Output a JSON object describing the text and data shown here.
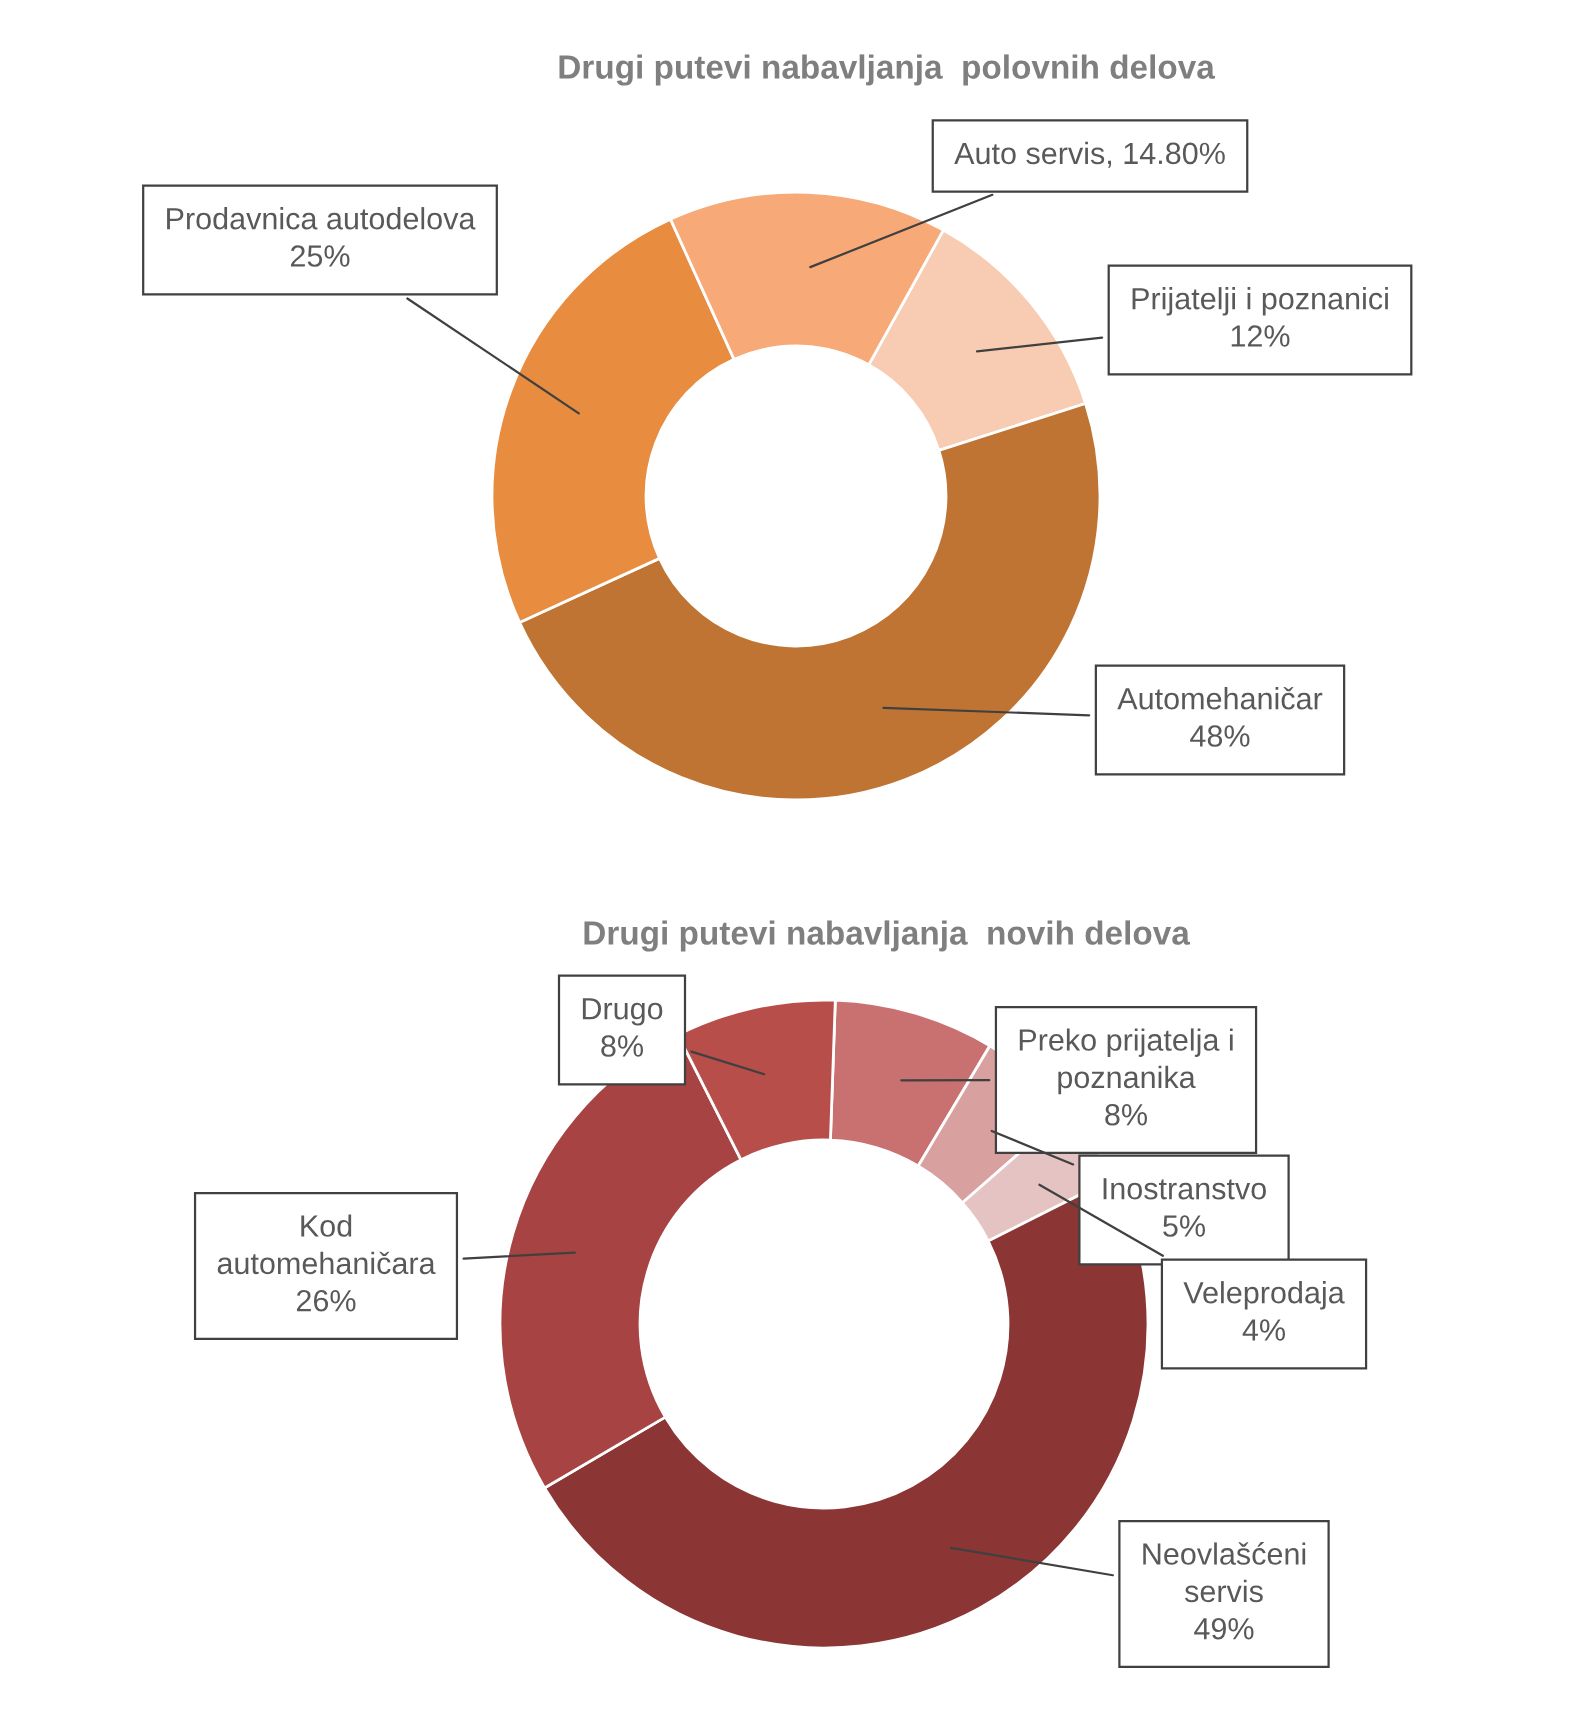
{
  "chart_data": [
    {
      "type": "donut",
      "title": "Drugi putevi nabavljanja  polovnih delova",
      "categories": [
        "Prijatelji i poznanici",
        "Automehaničar",
        "Prodavnica autodelova",
        "Auto servis"
      ],
      "values": [
        12,
        48,
        25,
        14.8
      ],
      "value_labels": [
        "12%",
        "48%",
        "25%",
        "14.80%"
      ],
      "colors": [
        "#f8cbb3",
        "#c07433",
        "#e88c40",
        "#f7a978"
      ]
    },
    {
      "type": "donut",
      "title": "Drugi putevi nabavljanja  novih delova",
      "categories": [
        "Preko prijatelja i poznanika",
        "Inostranstvo",
        "Veleprodaja",
        "Neovlašćeni servis",
        "Kod automehaničara",
        "Drugo"
      ],
      "values": [
        8,
        5,
        4,
        49,
        26,
        8
      ],
      "value_labels": [
        "8%",
        "5%",
        "4%",
        "49%",
        "26%",
        "8%"
      ],
      "colors": [
        "#c97070",
        "#d9a0a0",
        "#e6c3c3",
        "#8b3535",
        "#a84343",
        "#b84e4a"
      ]
    }
  ]
}
